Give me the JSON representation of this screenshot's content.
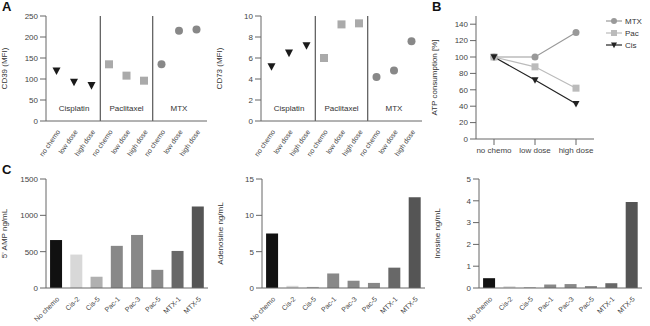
{
  "chart_data": [
    {
      "type": "scatter",
      "title": "A",
      "ylabel": "CD39 (MFI)",
      "categories": [
        "no chemo",
        "low dose",
        "high dose",
        "no chemo",
        "low dose",
        "high dose",
        "no chemo",
        "low dose",
        "high dose"
      ],
      "series": [
        {
          "name": "Cisplatin",
          "color": "#1a1a1a",
          "marker": "triangle-down",
          "values": [
            120,
            93,
            85,
            null,
            null,
            null,
            null,
            null,
            null
          ]
        },
        {
          "name": "Paclitaxel",
          "color": "#aaaaaa",
          "marker": "square",
          "values": [
            null,
            null,
            null,
            135,
            108,
            96,
            null,
            null,
            null
          ]
        },
        {
          "name": "MTX",
          "color": "#888888",
          "marker": "circle",
          "values": [
            null,
            null,
            null,
            null,
            null,
            null,
            135,
            215,
            218
          ]
        }
      ],
      "ylim": [
        0,
        250
      ],
      "yticks": [
        0,
        50,
        100,
        150,
        200,
        250
      ],
      "grid": false
    },
    {
      "type": "scatter",
      "ylabel": "CD73 (MFI)",
      "categories": [
        "no chemo",
        "low dose",
        "high dose",
        "no chemo",
        "low dose",
        "high dose",
        "no chemo",
        "low dose",
        "high dose"
      ],
      "series": [
        {
          "name": "Cisplatin",
          "color": "#1a1a1a",
          "marker": "triangle-down",
          "values": [
            5.2,
            6.5,
            7.2,
            null,
            null,
            null,
            null,
            null,
            null
          ]
        },
        {
          "name": "Paclitaxel",
          "color": "#aaaaaa",
          "marker": "square",
          "values": [
            null,
            null,
            null,
            6.0,
            9.2,
            9.3,
            null,
            null,
            null
          ]
        },
        {
          "name": "MTX",
          "color": "#888888",
          "marker": "circle",
          "values": [
            null,
            null,
            null,
            null,
            null,
            null,
            4.2,
            4.8,
            7.6
          ]
        }
      ],
      "ylim": [
        0,
        10
      ],
      "yticks": [
        0,
        2,
        4,
        6,
        8,
        10
      ],
      "grid": false
    },
    {
      "type": "line",
      "title": "B",
      "ylabel": "ATP consumption [%]",
      "categories": [
        "no chemo",
        "low dose",
        "high dose"
      ],
      "series": [
        {
          "name": "MTX",
          "color": "#999999",
          "marker": "circle",
          "values": [
            100,
            100,
            130
          ]
        },
        {
          "name": "Pac",
          "color": "#bbbbbb",
          "marker": "square",
          "values": [
            100,
            88,
            62
          ]
        },
        {
          "name": "Cis",
          "color": "#222222",
          "marker": "triangle-down",
          "values": [
            100,
            72,
            43
          ]
        }
      ],
      "ylim": [
        0,
        150
      ],
      "yticks": [
        0,
        20,
        40,
        60,
        80,
        100,
        120,
        140
      ],
      "legend": "right",
      "grid": false
    },
    {
      "type": "bar",
      "title": "C",
      "ylabel": "5' AMP ng/mL",
      "categories": [
        "No chemo",
        "Cis-2",
        "Cis-5",
        "Pac-1",
        "Pac-3",
        "Pac-5",
        "MTX-1",
        "MTX-5"
      ],
      "values": [
        660,
        460,
        155,
        580,
        730,
        250,
        510,
        1120
      ],
      "colors": [
        "#111111",
        "#d8d8d8",
        "#b0b0b0",
        "#888888",
        "#888888",
        "#888888",
        "#686868",
        "#555555"
      ],
      "ylim": [
        0,
        1500
      ],
      "yticks": [
        0,
        500,
        1000,
        1500
      ],
      "grid": false
    },
    {
      "type": "bar",
      "ylabel": "Adenosine ng/mL",
      "categories": [
        "No chemo",
        "Cis-2",
        "Cis-5",
        "Pac-1",
        "Pac-3",
        "Pac-5",
        "MTX-1",
        "MTX-5"
      ],
      "values": [
        7.5,
        0.3,
        0.15,
        2.0,
        1.0,
        0.7,
        2.8,
        12.5
      ],
      "colors": [
        "#111111",
        "#d8d8d8",
        "#b0b0b0",
        "#888888",
        "#888888",
        "#888888",
        "#686868",
        "#555555"
      ],
      "ylim": [
        0,
        15
      ],
      "yticks": [
        0,
        5,
        10,
        15
      ],
      "grid": false
    },
    {
      "type": "bar",
      "ylabel": "Inosine ng/mL",
      "categories": [
        "No chemo",
        "Cis-2",
        "Cis-5",
        "Pac-1",
        "Pac-3",
        "Pac-5",
        "MTX-1",
        "MTX-5"
      ],
      "values": [
        0.45,
        0.08,
        0.04,
        0.16,
        0.18,
        0.09,
        0.22,
        3.95
      ],
      "colors": [
        "#111111",
        "#d8d8d8",
        "#b0b0b0",
        "#888888",
        "#888888",
        "#888888",
        "#686868",
        "#555555"
      ],
      "ylim": [
        0,
        5
      ],
      "yticks": [
        0,
        1,
        2,
        3,
        4,
        5
      ],
      "grid": false
    }
  ]
}
